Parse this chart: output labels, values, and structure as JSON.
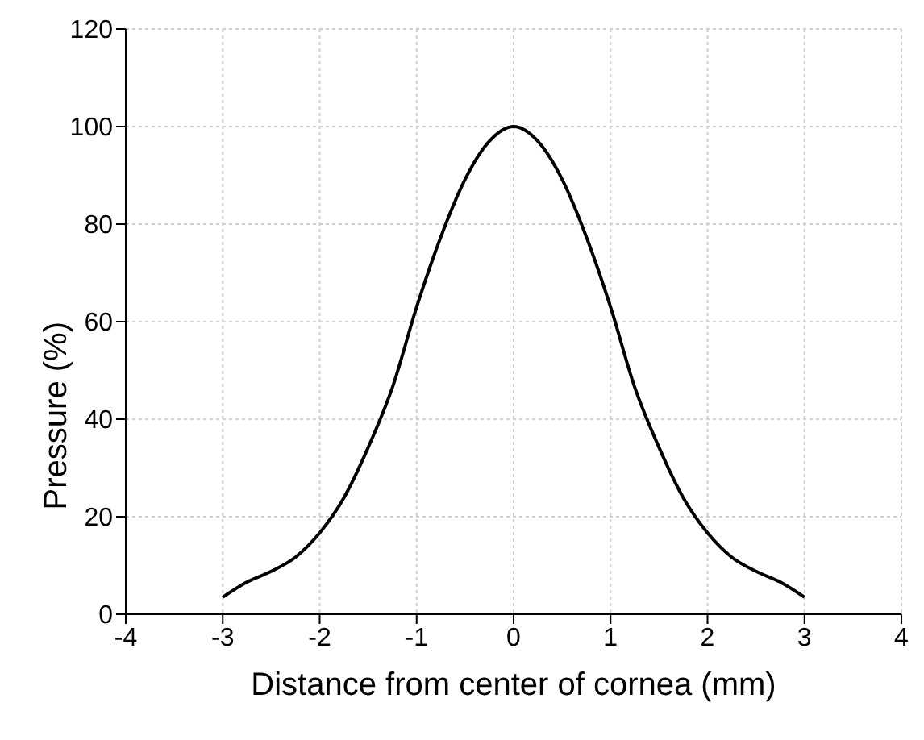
{
  "chart_data": {
    "type": "line",
    "xlabel": "Distance from center of cornea (mm)",
    "ylabel": "Pressure (%)",
    "x": [
      -3,
      -2.75,
      -2.5,
      -2.25,
      -2,
      -1.75,
      -1.5,
      -1.25,
      -1,
      -0.75,
      -0.5,
      -0.25,
      0,
      0.25,
      0.5,
      0.75,
      1,
      1.25,
      1.5,
      1.75,
      2,
      2.25,
      2.5,
      2.75,
      3
    ],
    "series": [
      {
        "color": "#000000",
        "values": [
          3.5,
          6.6,
          8.8,
          11.7,
          16.7,
          23.9,
          34.2,
          46.5,
          63,
          77.4,
          89.2,
          97,
          100,
          97,
          89.2,
          77.4,
          63,
          46.5,
          34.2,
          23.9,
          16.7,
          11.7,
          8.8,
          6.6,
          3.5
        ]
      }
    ],
    "xlim": [
      -4,
      4
    ],
    "xticks": [
      -4,
      -3,
      -2,
      -1,
      0,
      1,
      2,
      3,
      4
    ],
    "ylim": [
      0,
      120
    ],
    "yticks": [
      0,
      20,
      40,
      60,
      80,
      100,
      120
    ],
    "grid": true,
    "marker": "none",
    "line_style": "solid"
  }
}
